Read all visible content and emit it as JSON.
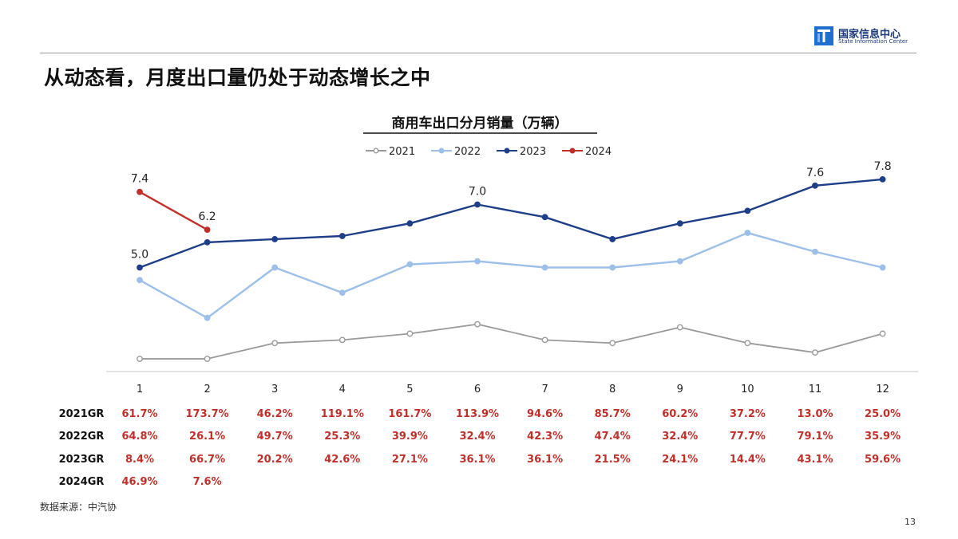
{
  "header": {
    "logo_cn": "国家信息中心",
    "logo_en": "State Information Center",
    "title": "从动态看，月度出口量仍处于动态增长之中"
  },
  "chart_data": {
    "type": "line",
    "title": "商用车出口分月销量（万辆）",
    "categories": [
      "1",
      "2",
      "3",
      "4",
      "5",
      "6",
      "7",
      "8",
      "9",
      "10",
      "11",
      "12"
    ],
    "legend_position": "top-center",
    "grid": false,
    "series": [
      {
        "name": "2021",
        "color": "#9a9a9a",
        "values": [
          2.1,
          2.1,
          2.6,
          2.7,
          2.9,
          3.2,
          2.7,
          2.6,
          3.1,
          2.6,
          2.3,
          2.9
        ]
      },
      {
        "name": "2022",
        "color": "#9dbfe8",
        "values": [
          4.6,
          3.4,
          5.0,
          4.2,
          5.1,
          5.2,
          5.0,
          5.0,
          5.2,
          6.1,
          5.5,
          5.0
        ]
      },
      {
        "name": "2023",
        "color": "#1f3e88",
        "values": [
          5.0,
          5.8,
          5.9,
          6.0,
          6.4,
          7.0,
          6.6,
          5.9,
          6.4,
          6.8,
          7.6,
          7.8
        ]
      },
      {
        "name": "2024",
        "color": "#c0302b",
        "values": [
          7.4,
          6.2,
          null,
          null,
          null,
          null,
          null,
          null,
          null,
          null,
          null,
          null
        ]
      }
    ],
    "data_labels": [
      {
        "series": "2024",
        "index": 0,
        "text": "7.4"
      },
      {
        "series": "2024",
        "index": 1,
        "text": "6.2"
      },
      {
        "series": "2023",
        "index": 0,
        "text": "5.0"
      },
      {
        "series": "2023",
        "index": 5,
        "text": "7.0"
      },
      {
        "series": "2023",
        "index": 10,
        "text": "7.6"
      },
      {
        "series": "2023",
        "index": 11,
        "text": "7.8"
      }
    ],
    "ylim": [
      0,
      9
    ],
    "growth_table": [
      {
        "label": "2021GR",
        "values": [
          "61.7%",
          "173.7%",
          "46.2%",
          "119.1%",
          "161.7%",
          "113.9%",
          "94.6%",
          "85.7%",
          "60.2%",
          "37.2%",
          "13.0%",
          "25.0%"
        ]
      },
      {
        "label": "2022GR",
        "values": [
          "64.8%",
          "26.1%",
          "49.7%",
          "25.3%",
          "39.9%",
          "32.4%",
          "42.3%",
          "47.4%",
          "32.4%",
          "77.7%",
          "79.1%",
          "35.9%"
        ]
      },
      {
        "label": "2023GR",
        "values": [
          "8.4%",
          "66.7%",
          "20.2%",
          "42.6%",
          "27.1%",
          "36.1%",
          "36.1%",
          "21.5%",
          "24.1%",
          "14.4%",
          "43.1%",
          "59.6%"
        ]
      },
      {
        "label": "2024GR",
        "values": [
          "46.9%",
          "7.6%"
        ]
      }
    ]
  },
  "footer": {
    "source": "数据来源：中汽协",
    "page_number": "13"
  },
  "colors": {
    "growth_text": "#c0302b",
    "accent": "#1f3e88"
  }
}
